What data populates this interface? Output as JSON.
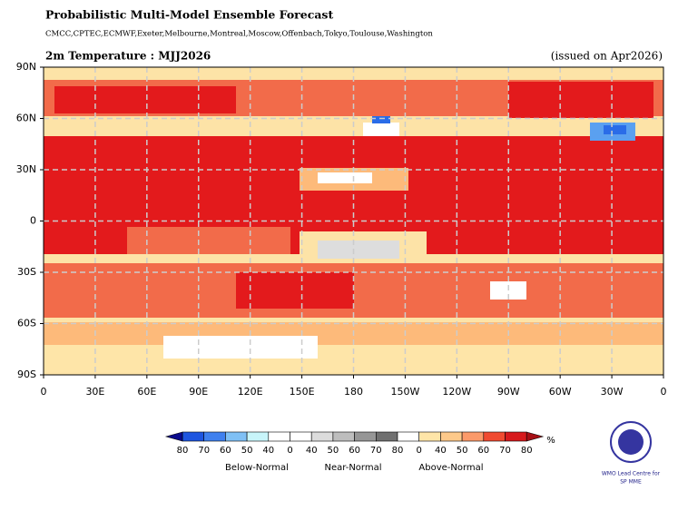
{
  "header": {
    "title": "Probabilistic Multi-Model Ensemble Forecast",
    "subtitle": "CMCC,CPTEC,ECMWF,Exeter,Melbourne,Montreal,Moscow,Offenbach,Tokyo,Toulouse,Washington"
  },
  "map": {
    "title": "2m Temperature : MJJ2026",
    "issued": "(issued on Apr2026)",
    "lat_labels": [
      "90N",
      "60N",
      "30N",
      "0",
      "30S",
      "60S",
      "90S"
    ],
    "lon_labels": [
      "0",
      "30E",
      "60E",
      "90E",
      "120E",
      "150E",
      "180",
      "150W",
      "120W",
      "90W",
      "60W",
      "30W",
      "0"
    ]
  },
  "legend": {
    "labels": [
      80,
      70,
      60,
      50,
      40,
      0,
      40,
      50,
      60,
      70,
      80,
      0,
      40,
      50,
      60,
      70,
      80
    ],
    "unit": "%",
    "groups": [
      "Below-Normal",
      "Near-Normal",
      "Above-Normal"
    ]
  },
  "logo": {
    "line1": "WMO Lead Centre for",
    "line2": "SP MME"
  }
}
